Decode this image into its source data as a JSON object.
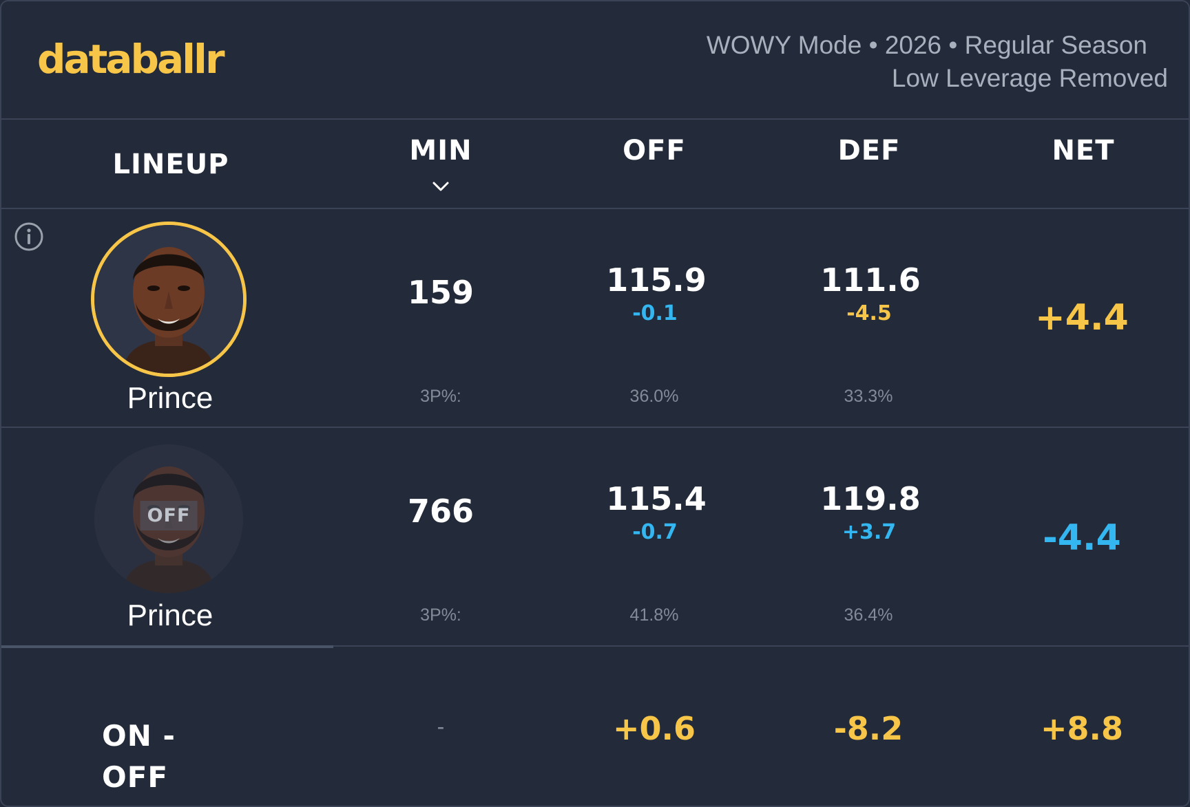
{
  "brand": {
    "logo": "databallr",
    "accent": "#f7c548"
  },
  "context": {
    "line1": "WOWY Mode • 2026 • Regular Season",
    "line2": "Low Leverage Removed"
  },
  "columns": {
    "lineup": "LINEUP",
    "min": "MIN",
    "off": "OFF",
    "def": "DEF",
    "net": "NET",
    "sort_icon": "chevron-down-icon"
  },
  "rows": [
    {
      "state": "on",
      "player": "Prince",
      "min": "159",
      "off": "115.9",
      "off_delta": "-0.1",
      "def": "111.6",
      "def_delta": "-4.5",
      "net": "+4.4",
      "tp_label": "3P%:",
      "off_3p": "36.0%",
      "def_3p": "33.3%"
    },
    {
      "state": "off",
      "badge": "OFF",
      "player": "Prince",
      "min": "766",
      "off": "115.4",
      "off_delta": "-0.7",
      "def": "119.8",
      "def_delta": "+3.7",
      "net": "-4.4",
      "tp_label": "3P%:",
      "off_3p": "41.8%",
      "def_3p": "36.4%"
    }
  ],
  "on_off": {
    "label_line1": "ON -",
    "label_line2": "OFF",
    "min": "-",
    "off": "+0.6",
    "def": "-8.2",
    "net": "+8.8"
  },
  "colors": {
    "positive": "#f7c548",
    "negative": "#34b6f0"
  }
}
